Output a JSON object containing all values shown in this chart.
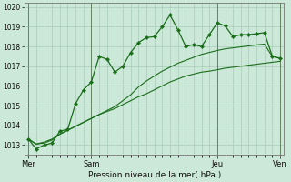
{
  "bg_color": "#cce8d8",
  "grid_color": "#aaccbb",
  "line_color": "#1a6e1a",
  "title": "Pression niveau de la mer( hPa )",
  "ylim": [
    1012.5,
    1020.2
  ],
  "yticks": [
    1013,
    1014,
    1015,
    1016,
    1017,
    1018,
    1019,
    1020
  ],
  "day_labels": [
    "Mer",
    "Sam",
    "Jeu",
    "Ven"
  ],
  "day_positions": [
    0,
    8,
    24,
    32
  ],
  "total_points": 33,
  "series1": [
    1013.3,
    1012.8,
    1013.0,
    1013.1,
    1013.7,
    1013.8,
    1015.1,
    1015.8,
    1016.2,
    1017.5,
    1017.35,
    1016.7,
    1017.0,
    1017.7,
    1018.2,
    1018.45,
    1018.5,
    1019.0,
    1019.6,
    1018.85,
    1018.0,
    1018.1,
    1018.0,
    1018.6,
    1019.2,
    1019.05,
    1018.5,
    1018.6,
    1018.6,
    1018.65,
    1018.7,
    1017.5,
    1017.4
  ],
  "series2": [
    1013.3,
    1013.05,
    1013.15,
    1013.3,
    1013.55,
    1013.75,
    1013.95,
    1014.15,
    1014.35,
    1014.55,
    1014.7,
    1014.85,
    1015.05,
    1015.25,
    1015.45,
    1015.6,
    1015.8,
    1016.0,
    1016.2,
    1016.35,
    1016.5,
    1016.6,
    1016.7,
    1016.75,
    1016.82,
    1016.9,
    1016.95,
    1017.0,
    1017.05,
    1017.1,
    1017.15,
    1017.2,
    1017.25
  ],
  "series3": [
    1013.3,
    1013.05,
    1013.1,
    1013.25,
    1013.55,
    1013.75,
    1013.95,
    1014.15,
    1014.35,
    1014.55,
    1014.75,
    1014.95,
    1015.25,
    1015.55,
    1015.95,
    1016.25,
    1016.5,
    1016.75,
    1016.95,
    1017.15,
    1017.3,
    1017.45,
    1017.6,
    1017.7,
    1017.8,
    1017.88,
    1017.93,
    1017.98,
    1018.03,
    1018.08,
    1018.12,
    1017.5,
    1017.4
  ]
}
